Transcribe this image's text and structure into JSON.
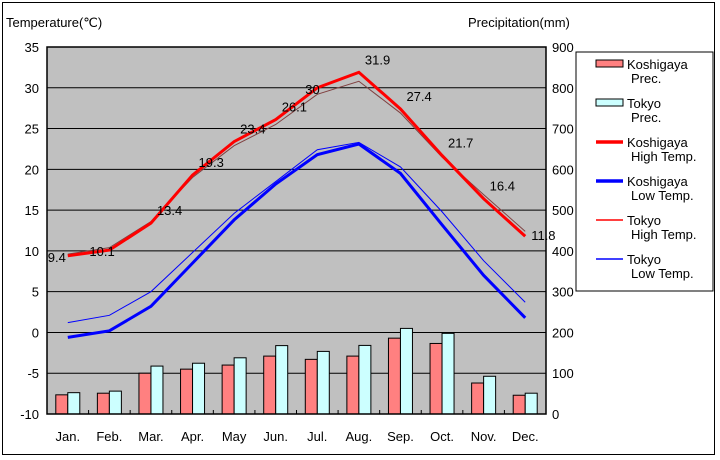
{
  "chart_data": {
    "type": "bar+line",
    "y_left_label": "Temperature(℃)",
    "y_right_label": "Precipitation(mm)",
    "ylim_left": [
      -10,
      35
    ],
    "ylim_right": [
      0,
      900
    ],
    "yticks_left": [
      "35",
      "30",
      "25",
      "20",
      "15",
      "10",
      "5",
      "0",
      "-5",
      "-10"
    ],
    "yticks_right": [
      "900",
      "800",
      "700",
      "600",
      "500",
      "400",
      "300",
      "200",
      "100",
      "0"
    ],
    "categories": [
      "Jan.",
      "Feb.",
      "Mar.",
      "Apr.",
      "May",
      "Jun.",
      "Jul.",
      "Aug.",
      "Sep.",
      "Oct.",
      "Nov.",
      "Dec."
    ],
    "grid": true,
    "legend_position": "right",
    "series": [
      {
        "name": "Koshigaya Prec.",
        "legend": [
          "Koshigaya",
          "Prec."
        ],
        "type": "bar",
        "axis": "right",
        "color": "#ff8080",
        "values": [
          47,
          51,
          100,
          110,
          120,
          142,
          134,
          142,
          186,
          173,
          76,
          46
        ]
      },
      {
        "name": "Tokyo Prec.",
        "legend": [
          "Tokyo",
          "Prec."
        ],
        "type": "bar",
        "axis": "right",
        "color": "#ccffff",
        "values": [
          52.3,
          56.1,
          117.5,
          124.5,
          137.8,
          167.7,
          153.5,
          168.2,
          209.9,
          197.8,
          92.5,
          51.0
        ]
      },
      {
        "name": "Koshigaya High Temp.",
        "legend": [
          "Koshigaya",
          "High Temp."
        ],
        "type": "line",
        "axis": "left",
        "color": "#ff0000",
        "width": 3,
        "values": [
          9.4,
          10.1,
          13.4,
          19.3,
          23.4,
          26.1,
          30,
          31.9,
          27.4,
          21.7,
          16.4,
          11.8
        ],
        "labels": [
          "9.4",
          "10.1",
          "13.4",
          "19.3",
          "23.4",
          "26.1",
          "30",
          "31.9",
          "27.4",
          "21.7",
          "16.4",
          "11.8"
        ]
      },
      {
        "name": "Koshigaya Low Temp.",
        "legend": [
          "Koshigaya",
          "Low Temp."
        ],
        "type": "line",
        "axis": "left",
        "color": "#0000ff",
        "width": 3,
        "values": [
          -0.6,
          0.2,
          3.2,
          8.5,
          13.8,
          18.2,
          21.8,
          23.1,
          19.5,
          13.2,
          7.0,
          1.8
        ]
      },
      {
        "name": "Tokyo High Temp.",
        "legend": [
          "Tokyo",
          "High Temp."
        ],
        "type": "line",
        "axis": "left",
        "color": "#ff0000",
        "width": 1,
        "values": [
          9.6,
          10.4,
          13.6,
          19.0,
          22.9,
          25.5,
          29.2,
          30.8,
          26.9,
          21.5,
          16.9,
          12.4
        ]
      },
      {
        "name": "Tokyo Low Temp.",
        "legend": [
          "Tokyo",
          "Low Temp."
        ],
        "type": "line",
        "axis": "left",
        "color": "#0000ff",
        "width": 1,
        "values": [
          1.2,
          2.1,
          5.0,
          9.8,
          14.6,
          18.5,
          22.4,
          23.3,
          20.3,
          14.8,
          8.8,
          3.7
        ]
      }
    ]
  }
}
